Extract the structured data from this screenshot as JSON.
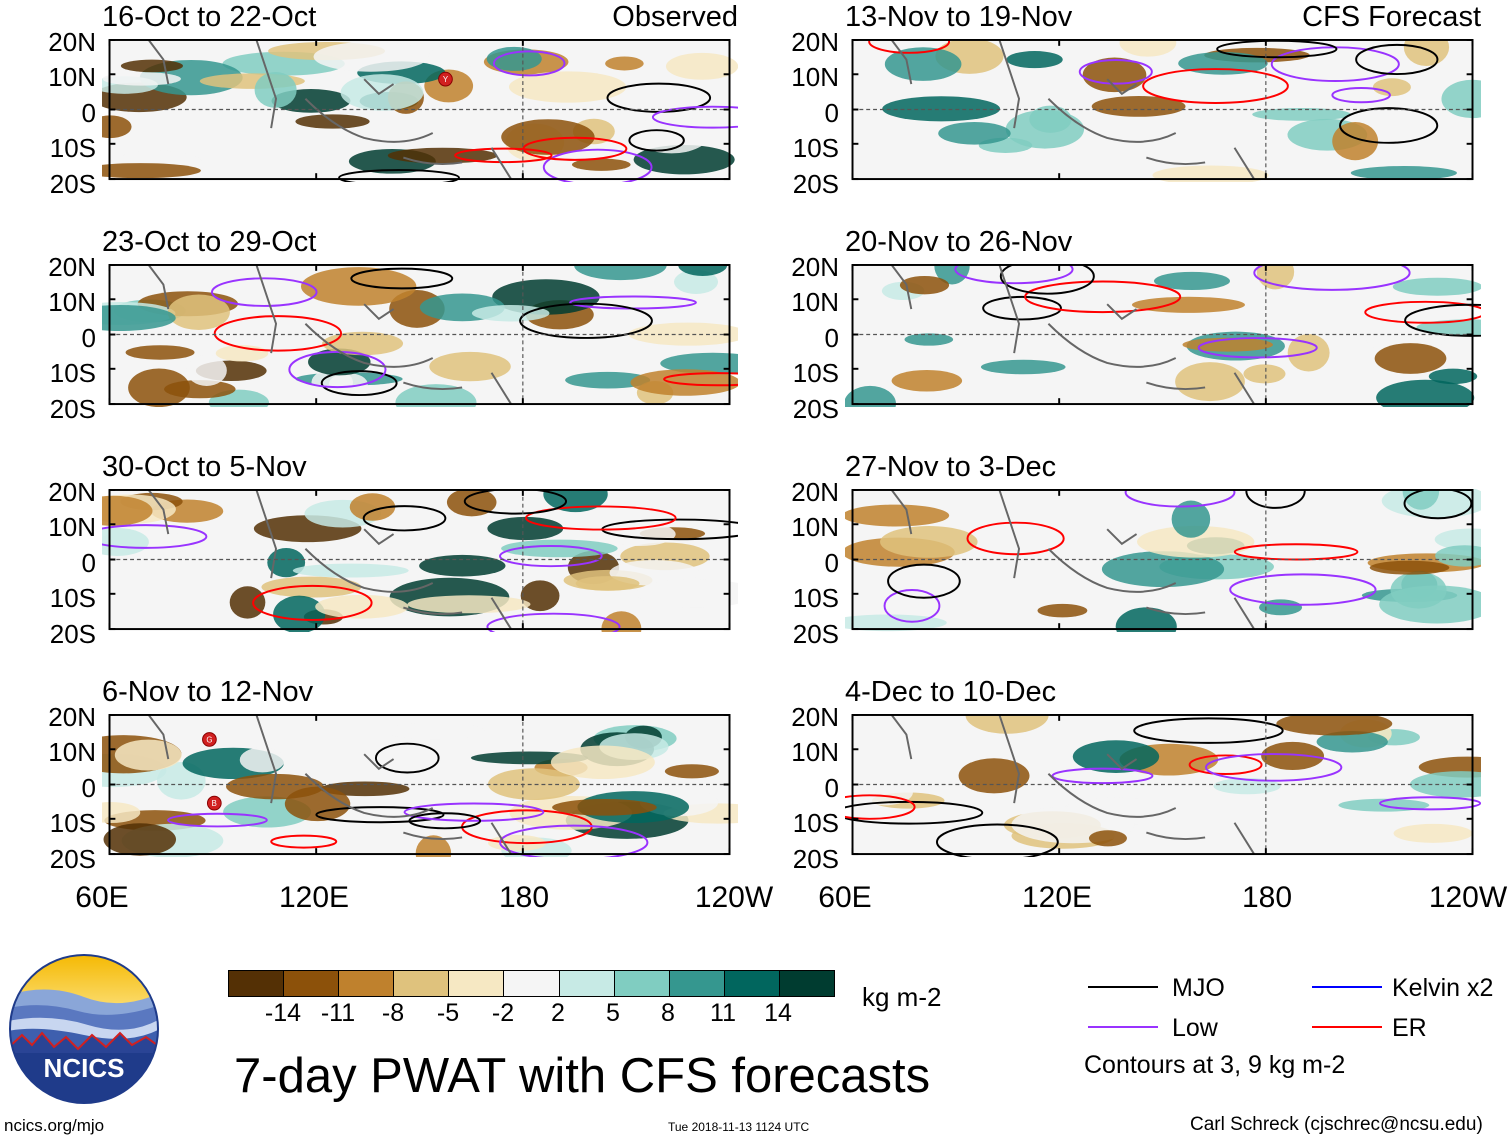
{
  "main_title": "7-day PWAT with CFS forecasts",
  "panels": [
    {
      "title": "16-Oct to 22-Oct",
      "tag": "Observed"
    },
    {
      "title": "23-Oct to 29-Oct",
      "tag": ""
    },
    {
      "title": "30-Oct to 5-Nov",
      "tag": ""
    },
    {
      "title": "6-Nov to 12-Nov",
      "tag": ""
    },
    {
      "title": "13-Nov to 19-Nov",
      "tag": "CFS Forecast"
    },
    {
      "title": "20-Nov to 26-Nov",
      "tag": ""
    },
    {
      "title": "27-Nov to 3-Dec",
      "tag": ""
    },
    {
      "title": "4-Dec to 10-Dec",
      "tag": ""
    }
  ],
  "lat_labels": [
    "20N",
    "10N",
    "0",
    "10S",
    "20S"
  ],
  "lon_labels": [
    "60E",
    "120E",
    "180",
    "120W"
  ],
  "colorbar": {
    "ticks": [
      "-14",
      "-11",
      "-8",
      "-5",
      "-2",
      "2",
      "5",
      "8",
      "11",
      "14"
    ],
    "colors": [
      "#543005",
      "#8c510a",
      "#bf812d",
      "#dfc27d",
      "#f6e8c3",
      "#f5f5f5",
      "#c7eae5",
      "#80cdc1",
      "#35978f",
      "#01665e",
      "#003c30"
    ],
    "units": "kg m-2"
  },
  "legend": {
    "items": [
      {
        "label": "MJO",
        "color": "#000000"
      },
      {
        "label": "Kelvin x2",
        "color": "#0000ff"
      },
      {
        "label": "Low",
        "color": "#9933ff"
      },
      {
        "label": "ER",
        "color": "#ff0000"
      }
    ],
    "note": "Contours at 3, 9 kg m-2"
  },
  "logo_text": "NCICS",
  "footer": {
    "url": "ncics.org/mjo",
    "timestamp": "Tue 2018-11-13 1124 UTC",
    "credit": "Carl Schreck (cjschrec@ncsu.edu)"
  },
  "markers": [
    {
      "panel": 0,
      "label": "Y"
    },
    {
      "panel": 3,
      "label": "G"
    },
    {
      "panel": 3,
      "label": "B"
    }
  ]
}
